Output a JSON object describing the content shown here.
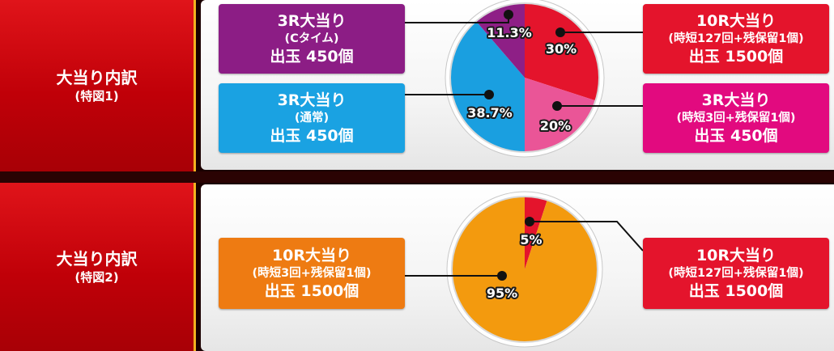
{
  "chart_data": [
    {
      "type": "pie",
      "label": {
        "title": "大当り内訳",
        "subtitle": "(特図1)"
      },
      "slices": [
        {
          "value": 30,
          "text": "30%",
          "color": "#e4142c",
          "box": {
            "line1": "10R大当り",
            "line2": "(時短127回+残保留1個)",
            "line3": "出玉 1500個",
            "color": "#e4142c"
          }
        },
        {
          "value": 20,
          "text": "20%",
          "color": "#ea5597",
          "box": {
            "line1": "3R大当り",
            "line2": "(時短3回+残保留1個)",
            "line3": "出玉 450個",
            "color": "#e20a7f"
          }
        },
        {
          "value": 38.7,
          "text": "38.7%",
          "color": "#1a9fe0",
          "box": {
            "line1": "3R大当り",
            "line2": "(通常)",
            "line3": "出玉 450個",
            "color": "#1aa2e2"
          }
        },
        {
          "value": 11.3,
          "text": "11.3%",
          "color": "#8e1f86",
          "box": {
            "line1": "3R大当り",
            "line2": "(Cタイム)",
            "line3": "出玉 450個",
            "color": "#8c1d85"
          }
        }
      ]
    },
    {
      "type": "pie",
      "label": {
        "title": "大当り内訳",
        "subtitle": "(特図2)"
      },
      "slices": [
        {
          "value": 5,
          "text": "5%",
          "color": "#e4142c",
          "box": {
            "line1": "10R大当り",
            "line2": "(時短127回+残保留1個)",
            "line3": "出玉 1500個",
            "color": "#e4142c"
          }
        },
        {
          "value": 95,
          "text": "95%",
          "color": "#f39a0e",
          "box": {
            "line1": "10R大当り",
            "line2": "(時短3回+残保留1個)",
            "line3": "出玉 1500個",
            "color": "#ee7b12"
          }
        }
      ]
    }
  ]
}
